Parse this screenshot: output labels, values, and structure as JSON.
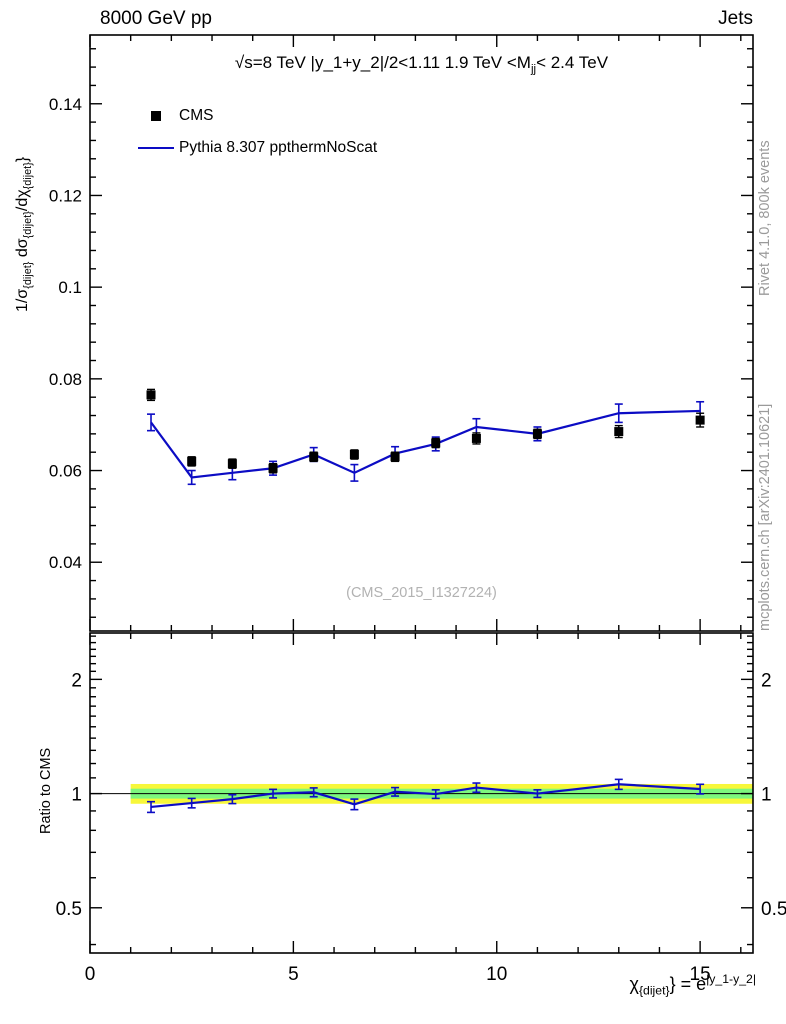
{
  "header": {
    "left": "8000 GeV pp",
    "right": "Jets"
  },
  "side_notes": {
    "top_right": "Rivet 4.1.0,  800k events",
    "bottom_right": "mcplots.cern.ch [arXiv:2401.10621]"
  },
  "colors": {
    "mc_line": "#0c0cc4",
    "data_marker": "#000000",
    "band_outer": "#f7f73a",
    "band_inner": "#7df77d",
    "watermark": "#b2b2b2",
    "side_note": "#9a9a9a"
  },
  "chart_data": {
    "type": "line",
    "title_segments": [
      {
        "t": "√s=8 TeV |y_1+y_2|/2<1.11 1.9 TeV <M"
      },
      {
        "sub": "jj"
      },
      {
        "t": "< 2.4 TeV"
      }
    ],
    "ylabel_segments": [
      {
        "t": "1/σ"
      },
      {
        "sub": "{dijet}"
      },
      {
        "t": " dσ"
      },
      {
        "sub": "{dijet}"
      },
      {
        "t": "/dχ"
      },
      {
        "sub": "{dijet}"
      },
      {
        "t": "}"
      }
    ],
    "xlabel_segments": [
      {
        "t": "χ"
      },
      {
        "sub": "{dijet}"
      },
      {
        "t": "} = e"
      },
      {
        "sup": "|y_1-y_2|"
      }
    ],
    "ratio_ylabel": "Ratio to CMS",
    "watermark": "(CMS_2015_I1327224)",
    "x_axis": {
      "lim": [
        0,
        16.3
      ],
      "major_ticks": [
        0,
        5,
        10,
        15
      ],
      "tick_labels": [
        "0",
        "5",
        "10",
        "15"
      ],
      "minor_step": 1
    },
    "main_axis": {
      "lim": [
        0.025,
        0.155
      ],
      "major_ticks": [
        0.04,
        0.06,
        0.08,
        0.1,
        0.12,
        0.14
      ],
      "tick_labels": [
        "0.04",
        "0.06",
        "0.08",
        "0.1",
        "0.12",
        "0.14"
      ],
      "minor_step": 0.004
    },
    "ratio_axis": {
      "scale": "log",
      "lim": [
        0.38,
        2.65
      ],
      "major_ticks": [
        0.5,
        1,
        2
      ],
      "tick_labels": [
        "0.5",
        "1",
        "2"
      ],
      "minor_ticks": [
        0.4,
        0.6,
        0.7,
        0.8,
        0.9,
        1.1,
        1.2,
        1.3,
        1.4,
        1.5,
        1.6,
        1.7,
        1.8,
        1.9,
        2.1,
        2.2,
        2.3,
        2.4,
        2.5,
        2.6
      ]
    },
    "x": [
      1.5,
      2.5,
      3.5,
      4.5,
      5.5,
      6.5,
      7.5,
      8.5,
      9.5,
      11,
      13,
      15
    ],
    "series": [
      {
        "name": "CMS",
        "type": "scatter",
        "marker": "square",
        "color": "#000000",
        "values": [
          0.0765,
          0.062,
          0.0615,
          0.0605,
          0.063,
          0.0635,
          0.063,
          0.066,
          0.067,
          0.068,
          0.0685,
          0.071
        ],
        "yerr": [
          0.0012,
          0.001,
          0.001,
          0.001,
          0.001,
          0.001,
          0.001,
          0.001,
          0.0012,
          0.001,
          0.0013,
          0.0015
        ]
      },
      {
        "name": "Pythia 8.307 ppthermNoScat",
        "type": "line",
        "color": "#0c0cc4",
        "values": [
          0.0705,
          0.0585,
          0.0595,
          0.0605,
          0.0635,
          0.0595,
          0.0637,
          0.0658,
          0.0695,
          0.068,
          0.0725,
          0.073
        ],
        "yerr": [
          0.0018,
          0.0015,
          0.0015,
          0.0015,
          0.0015,
          0.0018,
          0.0015,
          0.0015,
          0.0018,
          0.0015,
          0.002,
          0.002
        ]
      }
    ],
    "ratio": {
      "name": "Pythia / CMS",
      "values": [
        0.922,
        0.944,
        0.967,
        1.0,
        1.008,
        0.937,
        1.011,
        0.997,
        1.037,
        1.0,
        1.058,
        1.028
      ],
      "yerr": [
        0.03,
        0.027,
        0.026,
        0.026,
        0.027,
        0.03,
        0.026,
        0.026,
        0.029,
        0.023,
        0.032,
        0.03
      ],
      "band_x": [
        1,
        16.3
      ],
      "band_outer": [
        0.94,
        1.06
      ],
      "band_inner": [
        0.97,
        1.03
      ],
      "ref_line": 1
    }
  }
}
